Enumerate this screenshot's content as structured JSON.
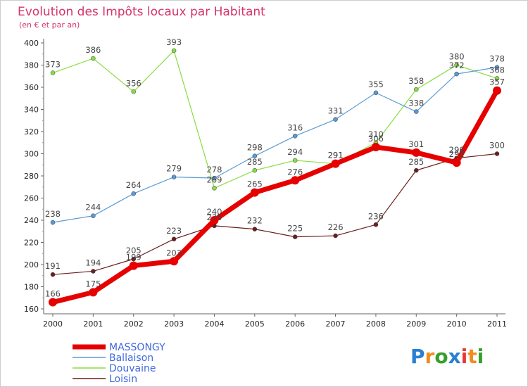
{
  "chart_data": {
    "type": "line",
    "title": "Evolution des Impôts locaux par Habitant",
    "subtitle": "(en € et par an)",
    "xlabel": "",
    "ylabel": "",
    "x": [
      "2000",
      "2001",
      "2002",
      "2003",
      "2004",
      "2005",
      "2006",
      "2007",
      "2008",
      "2009",
      "2010",
      "2011"
    ],
    "ylim": [
      160,
      400
    ],
    "yticks": [
      160,
      180,
      200,
      220,
      240,
      260,
      280,
      300,
      320,
      340,
      360,
      380,
      400
    ],
    "grid": false,
    "legend_position": "bottom-left",
    "series": [
      {
        "name": "Loisin",
        "color": "#6b1f1f",
        "values": [
          191,
          194,
          205,
          223,
          235,
          232,
          225,
          226,
          236,
          285,
          296,
          300
        ],
        "labels": [
          "191",
          "194",
          "205",
          "223",
          "235",
          "232",
          "225",
          "226",
          "236",
          "285",
          "296",
          "300"
        ]
      },
      {
        "name": "Douvaine",
        "color": "#88dd44",
        "values": [
          373,
          386,
          356,
          393,
          269,
          285,
          294,
          291,
          310,
          358,
          380,
          368
        ],
        "labels": [
          "373",
          "386",
          "356",
          "393",
          "269",
          "285",
          "294",
          "291",
          "310",
          "358",
          "380",
          "368"
        ]
      },
      {
        "name": "Ballaison",
        "color": "#5a9bd5",
        "values": [
          238,
          244,
          264,
          279,
          278,
          298,
          316,
          331,
          355,
          338,
          372,
          378
        ],
        "labels": [
          "238",
          "244",
          "264",
          "279",
          "278",
          "298",
          "316",
          "331",
          "355",
          "338",
          "372",
          "378"
        ]
      },
      {
        "name": "MASSONGY",
        "color": "#e60000",
        "values": [
          166,
          175,
          199,
          203,
          240,
          265,
          276,
          291,
          306,
          301,
          292,
          357
        ],
        "labels": [
          "166",
          "175",
          "199",
          "203",
          "240",
          "265",
          "276",
          "291",
          "306",
          "301",
          "292",
          "357"
        ]
      }
    ]
  },
  "brand": {
    "name": "Proxiti",
    "letters": [
      "P",
      "r",
      "o",
      "x",
      "i",
      "t",
      "i"
    ],
    "colors": [
      "#2a7fd4",
      "#f08c1e",
      "#33a02c",
      "#2a7fd4",
      "#e53935",
      "#f08c1e",
      "#33a02c"
    ]
  }
}
